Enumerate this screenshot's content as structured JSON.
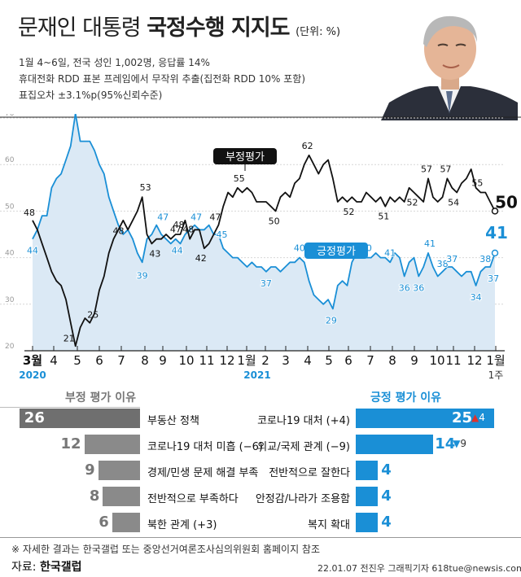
{
  "header": {
    "title_plain": "문재인 대통령 ",
    "title_bold": "국정수행 지지도",
    "unit": "(단위: %)",
    "info_lines": [
      "1월 4~6일, 전국 성인 1,002명, 응답률 14%",
      "휴대전화 RDD 표본 프레임에서 무작위 추출(집전화 RDD 10% 포함)",
      "표집오차 ±3.1%p(95%신뢰수준)"
    ]
  },
  "colors": {
    "positive": "#1a8fd6",
    "negative": "#111111",
    "neg_bar": "#8a8a8a",
    "area": "#dbe9f5",
    "up_arrow": "#e0322c"
  },
  "chart_data": [
    {
      "type": "line",
      "x_ticks": [
        "3월",
        "4",
        "5",
        "6",
        "7",
        "8",
        "9",
        "10",
        "11",
        "12",
        "1월",
        "2",
        "3",
        "4",
        "5",
        "6",
        "7",
        "8",
        "9",
        "10",
        "11",
        "12",
        "1월",
        "1주"
      ],
      "year_labels": [
        "2020",
        "2021"
      ],
      "y_ticks": [
        70,
        60,
        50,
        40,
        30,
        20
      ],
      "ylim": [
        20,
        70
      ],
      "series": [
        {
          "name": "부정평가",
          "values": [
            48,
            46,
            43,
            40,
            37,
            35,
            34,
            31,
            26,
            21,
            25,
            27,
            26,
            28,
            33,
            36,
            41,
            44,
            46,
            48,
            46,
            48,
            50,
            53,
            45,
            43,
            44,
            44,
            45,
            44,
            45,
            45,
            48,
            44,
            46,
            46,
            42,
            43,
            45,
            47,
            51,
            54,
            53,
            55,
            54,
            55,
            54,
            52,
            52,
            52,
            51,
            50,
            53,
            54,
            53,
            56,
            57,
            60,
            62,
            60,
            58,
            60,
            61,
            57,
            52,
            53,
            52,
            53,
            52,
            52,
            54,
            53,
            52,
            53,
            51,
            53,
            52,
            53,
            52,
            55,
            54,
            53,
            52,
            57,
            53,
            52,
            53,
            57,
            55,
            54,
            56,
            57,
            59,
            55,
            54,
            54,
            52,
            50
          ],
          "labels": [
            "48",
            "53",
            "48",
            "55",
            "21",
            "25",
            "48",
            "43",
            "48",
            "47",
            "42",
            "47",
            "50",
            "62",
            "52",
            "51",
            "52",
            "57",
            "57",
            "54",
            "55",
            "50"
          ]
        },
        {
          "name": "긍정평가",
          "values": [
            44,
            46,
            49,
            49,
            55,
            57,
            58,
            61,
            64,
            71,
            65,
            65,
            65,
            63,
            60,
            58,
            53,
            50,
            47,
            45,
            46,
            44,
            41,
            39,
            44,
            45,
            47,
            45,
            44,
            43,
            44,
            43,
            45,
            46,
            47,
            46,
            46,
            47,
            45,
            45,
            42,
            41,
            40,
            40,
            39,
            38,
            39,
            38,
            38,
            37,
            38,
            38,
            37,
            38,
            39,
            39,
            40,
            39,
            35,
            32,
            31,
            30,
            31,
            29,
            34,
            35,
            34,
            39,
            41,
            40,
            40,
            40,
            41,
            40,
            40,
            39,
            41,
            40,
            36,
            39,
            40,
            36,
            38,
            41,
            38,
            36,
            37,
            38,
            38,
            37,
            36,
            37,
            37,
            34,
            37,
            38,
            38,
            41
          ],
          "labels": [
            "44",
            "71",
            "39",
            "47",
            "44",
            "47",
            "45",
            "37",
            "40",
            "29",
            "40",
            "41",
            "36",
            "41",
            "36",
            "38",
            "37",
            "34",
            "38",
            "37",
            "41"
          ]
        }
      ]
    },
    {
      "type": "bar",
      "title": "부정 평가 이유",
      "categories": [
        "부동산 정책",
        "코로나19 대처 미흡 (−6)",
        "경제/민생 문제 해결 부족",
        "전반적으로 부족하다",
        "북한 관계 (+3)"
      ],
      "values": [
        26,
        12,
        9,
        8,
        6
      ]
    },
    {
      "type": "bar",
      "title": "긍정 평가 이유",
      "categories": [
        "코로나19 대처 (+4)",
        "외교/국제 관계 (−9)",
        "전반적으로 잘한다",
        "안정감/나라가 조용함",
        "복지 확대"
      ],
      "values": [
        25,
        14,
        4,
        4,
        4
      ],
      "changes": [
        "4",
        "9"
      ]
    }
  ],
  "footer": {
    "note": "※ 자세한 결과는 한국갤럽 또는 중앙선거여론조사심의위원회 홈페이지 참조",
    "source_prefix": "자료: ",
    "source_name": "한국갤럽",
    "credit": "22.01.07   전진우 그래픽기자 618tue@newsis.com"
  }
}
